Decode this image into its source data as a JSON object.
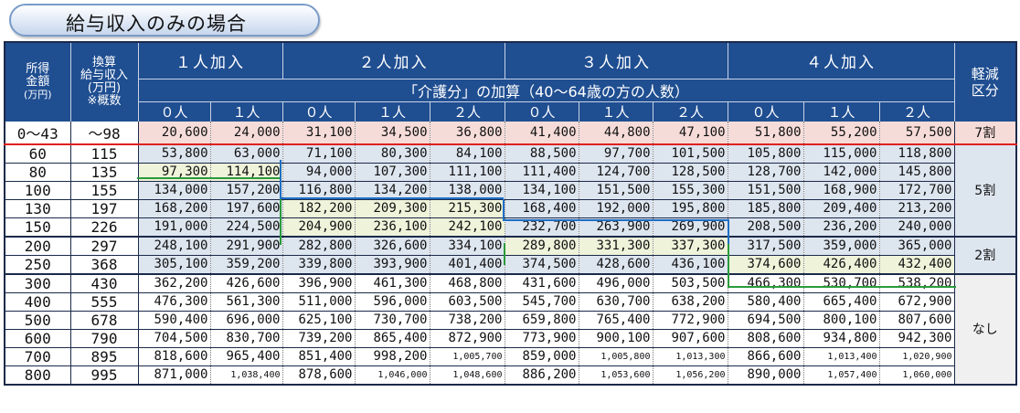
{
  "title": "給与収入のみの場合",
  "header": {
    "income": [
      "所得",
      "金額",
      "(万円)"
    ],
    "converted": [
      "換算",
      "給与収入",
      "(万円)",
      "※概数"
    ],
    "groups": [
      "１人加入",
      "２人加入",
      "３人加入",
      "４人加入"
    ],
    "category": [
      "軽減",
      "区分"
    ],
    "care_note": "「介護分」の加算（40～64歳の方の人数）",
    "care_counts": [
      [
        "０人",
        "１人"
      ],
      [
        "０人",
        "１人",
        "２人"
      ],
      [
        "０人",
        "１人",
        "２人"
      ],
      [
        "０人",
        "１人",
        "２人"
      ]
    ]
  },
  "rows": [
    {
      "income": "0～43",
      "converted": "～98",
      "values": [
        "20,600",
        "24,000",
        "31,100",
        "34,500",
        "36,800",
        "41,400",
        "44,800",
        "47,100",
        "51,800",
        "55,200",
        "57,500"
      ]
    },
    {
      "income": "60",
      "converted": "115",
      "values": [
        "53,800",
        "63,000",
        "71,100",
        "80,300",
        "84,100",
        "88,500",
        "97,700",
        "101,500",
        "105,800",
        "115,000",
        "118,800"
      ]
    },
    {
      "income": "80",
      "converted": "135",
      "values": [
        "97,300",
        "114,100",
        "94,000",
        "107,300",
        "111,100",
        "111,400",
        "124,700",
        "128,500",
        "128,700",
        "142,000",
        "145,800"
      ]
    },
    {
      "income": "100",
      "converted": "155",
      "values": [
        "134,000",
        "157,200",
        "116,800",
        "134,200",
        "138,000",
        "134,100",
        "151,500",
        "155,300",
        "151,500",
        "168,900",
        "172,700"
      ]
    },
    {
      "income": "130",
      "converted": "197",
      "values": [
        "168,200",
        "197,600",
        "182,200",
        "209,300",
        "215,300",
        "168,400",
        "192,000",
        "195,800",
        "185,800",
        "209,400",
        "213,200"
      ]
    },
    {
      "income": "150",
      "converted": "226",
      "values": [
        "191,000",
        "224,500",
        "204,900",
        "236,100",
        "242,100",
        "232,700",
        "263,900",
        "269,900",
        "208,500",
        "236,200",
        "240,000"
      ]
    },
    {
      "income": "200",
      "converted": "297",
      "values": [
        "248,100",
        "291,900",
        "282,800",
        "326,600",
        "334,100",
        "289,800",
        "331,300",
        "337,300",
        "317,500",
        "359,000",
        "365,000"
      ]
    },
    {
      "income": "250",
      "converted": "368",
      "values": [
        "305,100",
        "359,200",
        "339,800",
        "393,900",
        "401,400",
        "374,500",
        "428,600",
        "436,100",
        "374,600",
        "426,400",
        "432,400"
      ]
    },
    {
      "income": "300",
      "converted": "430",
      "values": [
        "362,200",
        "426,600",
        "396,900",
        "461,300",
        "468,800",
        "431,600",
        "496,000",
        "503,500",
        "466,300",
        "530,700",
        "538,200"
      ]
    },
    {
      "income": "400",
      "converted": "555",
      "values": [
        "476,300",
        "561,300",
        "511,000",
        "596,000",
        "603,500",
        "545,700",
        "630,700",
        "638,200",
        "580,400",
        "665,400",
        "672,900"
      ]
    },
    {
      "income": "500",
      "converted": "678",
      "values": [
        "590,400",
        "696,000",
        "625,100",
        "730,700",
        "738,200",
        "659,800",
        "765,400",
        "772,900",
        "694,500",
        "800,100",
        "807,600"
      ]
    },
    {
      "income": "600",
      "converted": "790",
      "values": [
        "704,500",
        "830,700",
        "739,200",
        "865,400",
        "872,900",
        "773,900",
        "900,100",
        "907,600",
        "808,600",
        "934,800",
        "942,300"
      ]
    },
    {
      "income": "700",
      "converted": "895",
      "values": [
        "818,600",
        "965,400",
        "851,400",
        "998,200",
        "1,005,700",
        "859,000",
        "1,005,800",
        "1,013,300",
        "866,600",
        "1,013,400",
        "1,020,900"
      ]
    },
    {
      "income": "800",
      "converted": "995",
      "values": [
        "871,000",
        "1,038,400",
        "878,600",
        "1,046,000",
        "1,048,600",
        "886,200",
        "1,053,600",
        "1,056,200",
        "890,000",
        "1,057,400",
        "1,060,000"
      ]
    }
  ],
  "categories": [
    "7割",
    "5割",
    "2割",
    "なし"
  ]
}
